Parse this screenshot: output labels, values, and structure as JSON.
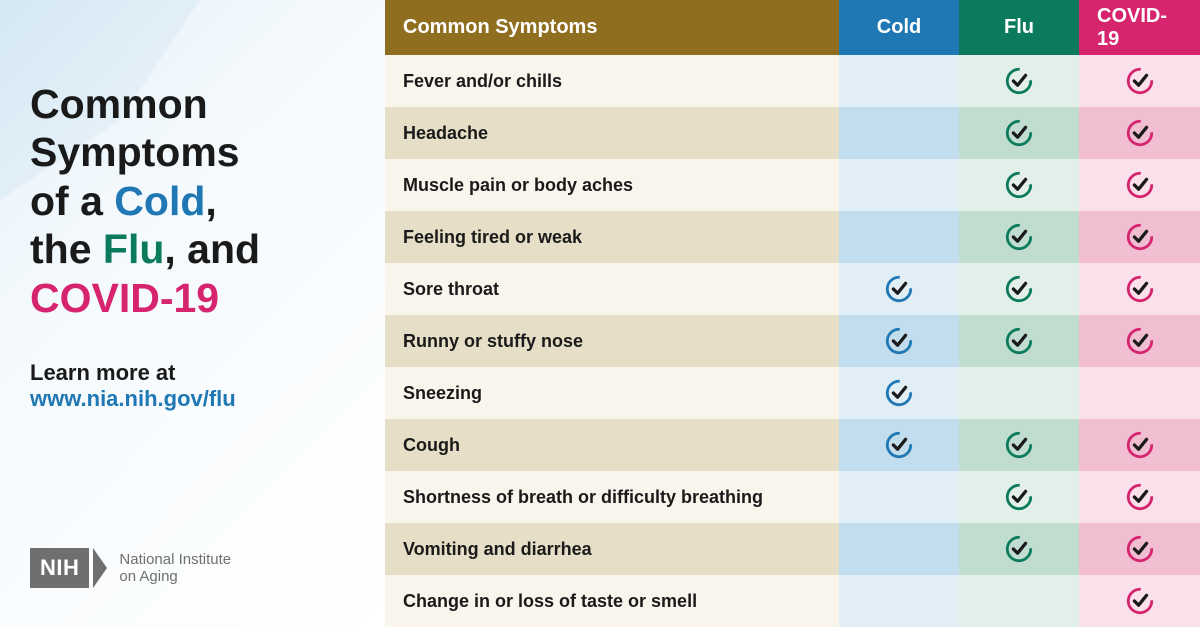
{
  "title": {
    "line1": "Common Symptoms",
    "line2a": "of a ",
    "cold": "Cold",
    "line2b": ",",
    "line3a": "the ",
    "flu": "Flu",
    "line3b": ", and",
    "covid": "COVID-19"
  },
  "learn_label": "Learn more at",
  "learn_url": "www.nia.nih.gov/flu",
  "logo": {
    "nih": "NIH",
    "nia1": "National Institute",
    "nia2": "on Aging"
  },
  "colors": {
    "cold": "#1f78b4",
    "flu": "#0c7a5c",
    "covid": "#d6246e",
    "check_stroke": "#1a1a1a"
  },
  "table": {
    "headers": {
      "symptom": "Common Symptoms",
      "cold": "Cold",
      "flu": "Flu",
      "covid": "COVID-19"
    },
    "rows": [
      {
        "symptom": "Fever and/or chills",
        "cold": false,
        "flu": true,
        "covid": true
      },
      {
        "symptom": "Headache",
        "cold": false,
        "flu": true,
        "covid": true
      },
      {
        "symptom": "Muscle pain or body aches",
        "cold": false,
        "flu": true,
        "covid": true
      },
      {
        "symptom": "Feeling tired or weak",
        "cold": false,
        "flu": true,
        "covid": true
      },
      {
        "symptom": "Sore throat",
        "cold": true,
        "flu": true,
        "covid": true
      },
      {
        "symptom": "Runny or stuffy nose",
        "cold": true,
        "flu": true,
        "covid": true
      },
      {
        "symptom": "Sneezing",
        "cold": true,
        "flu": false,
        "covid": false
      },
      {
        "symptom": "Cough",
        "cold": true,
        "flu": true,
        "covid": true
      },
      {
        "symptom": "Shortness of breath or difficulty breathing",
        "cold": false,
        "flu": true,
        "covid": true
      },
      {
        "symptom": "Vomiting and diarrhea",
        "cold": false,
        "flu": true,
        "covid": true
      },
      {
        "symptom": "Change in or loss of taste or smell",
        "cold": false,
        "flu": false,
        "covid": true
      }
    ]
  }
}
